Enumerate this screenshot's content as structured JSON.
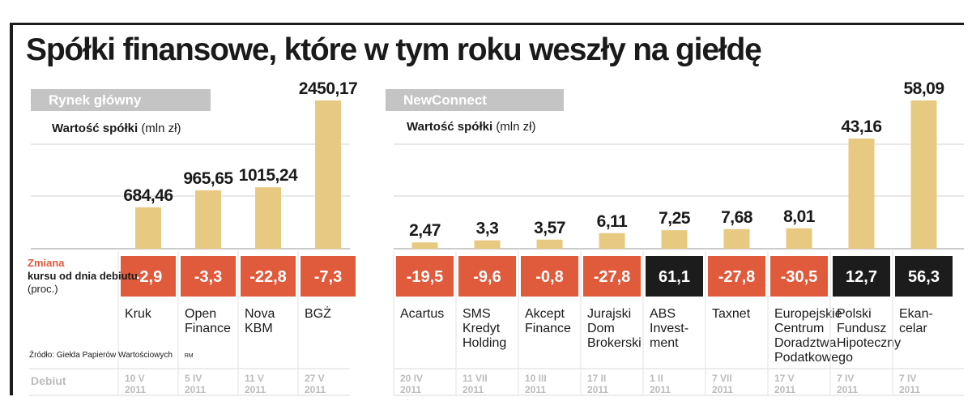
{
  "title": "Spółki finansowe, które w tym roku weszły na giełdę",
  "source": "Źródło: Giełda Papierów Wartościowych",
  "source_tag": "RM",
  "legend": {
    "change_highlight": "Zmiana",
    "change_rest": "kursu od dnia debiutu",
    "change_unit": "(proc.)"
  },
  "debut_header": "Debiut",
  "colors": {
    "bar": "#e8c982",
    "change_negative": "#e05a3c",
    "change_positive": "#1c1c1c",
    "gridline": "#d0d0d0",
    "tag_bg": "#c4c4c4",
    "debut_text": "#bcbcbc"
  },
  "chart_data": [
    {
      "type": "bar",
      "panel_tag": "Rynek główny",
      "value_label_bold": "Wartość spółki",
      "value_label_unit": "(mln zł)",
      "categories": [
        "Kruk",
        "Open Finance",
        "Nova KBM",
        "BGŻ"
      ],
      "values": [
        684.46,
        965.65,
        1015.24,
        2450.17
      ],
      "value_labels": [
        "684,46",
        "965,65",
        "1015,24",
        "2450,17"
      ],
      "change": [
        -2.9,
        -3.3,
        -22.8,
        -7.3
      ],
      "change_labels": [
        "-2,9",
        "-3,3",
        "-22,8",
        "-7,3"
      ],
      "debut": [
        [
          "10 V",
          "2011"
        ],
        [
          "5 IV",
          "2011"
        ],
        [
          "11 V",
          "2011"
        ],
        [
          "27 V",
          "2011"
        ]
      ],
      "ylim": [
        0,
        2450.17
      ]
    },
    {
      "type": "bar",
      "panel_tag": "NewConnect",
      "value_label_bold": "Wartość spółki",
      "value_label_unit": "(mln zł)",
      "categories": [
        "Acartus",
        "SMS Kredyt Holding",
        "Akcept Finance",
        "Jurajski Dom Brokerski",
        "ABS Invest-ment",
        "Taxnet",
        "Europejskie Centrum Doradztwa Podatkowego",
        "Polski Fundusz Hipoteczny",
        "Ekan-celar"
      ],
      "category_lines": [
        [
          "Acartus"
        ],
        [
          "SMS",
          "Kredyt",
          "Holding"
        ],
        [
          "Akcept",
          "Finance"
        ],
        [
          "Jurajski",
          "Dom",
          "Brokerski"
        ],
        [
          "ABS",
          "Invest-",
          "ment"
        ],
        [
          "Taxnet"
        ],
        [
          "Europejskie",
          "Centrum",
          "Doradztwa",
          "Podatkowego"
        ],
        [
          "Polski",
          "Fundusz",
          "Hipoteczny"
        ],
        [
          "Ekan-",
          "celar"
        ]
      ],
      "values": [
        2.47,
        3.3,
        3.57,
        6.11,
        7.25,
        7.68,
        8.01,
        43.16,
        58.09
      ],
      "value_labels": [
        "2,47",
        "3,3",
        "3,57",
        "6,11",
        "7,25",
        "7,68",
        "8,01",
        "43,16",
        "58,09"
      ],
      "change": [
        -19.5,
        -9.6,
        -0.8,
        -27.8,
        61.1,
        -27.8,
        -30.5,
        12.7,
        56.3
      ],
      "change_labels": [
        "-19,5",
        "-9,6",
        "-0,8",
        "-27,8",
        "61,1",
        "-27,8",
        "-30,5",
        "12,7",
        "56,3"
      ],
      "debut": [
        [
          "20 IV",
          "2011"
        ],
        [
          "11 VII",
          "2011"
        ],
        [
          "10 III",
          "2011"
        ],
        [
          "17 II",
          "2011"
        ],
        [
          "1 II",
          "2011"
        ],
        [
          "7 VII",
          "2011"
        ],
        [
          "17 V",
          "2011"
        ],
        [
          "7 IV",
          "2011"
        ],
        [
          "7 IV",
          "2011"
        ]
      ],
      "ylim": [
        0,
        58.09
      ]
    }
  ]
}
